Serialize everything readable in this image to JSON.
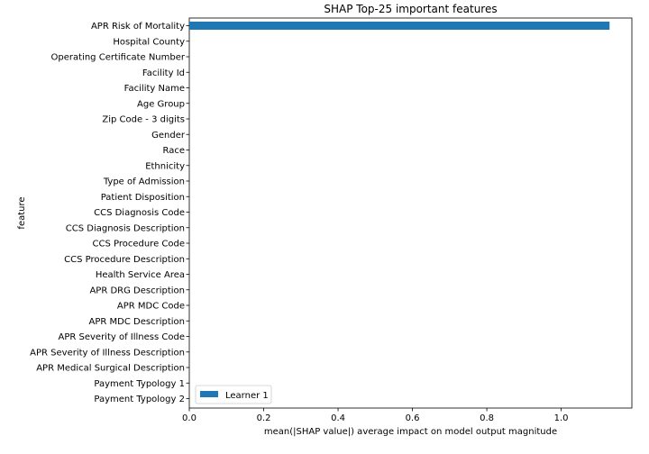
{
  "chart_data": {
    "type": "bar",
    "orientation": "horizontal",
    "title": "SHAP Top-25 important features",
    "xlabel": "mean(|SHAP value|) average impact on model output magnitude",
    "ylabel": "feature",
    "xlim": [
      0,
      1.19
    ],
    "xticks": [
      0,
      0.2,
      0.4,
      0.6,
      0.8,
      1.0
    ],
    "xtick_labels": [
      "0.0",
      "0.2",
      "0.4",
      "0.6",
      "0.8",
      "1.0"
    ],
    "grid": false,
    "legend_position": "lower-left",
    "categories": [
      "APR Risk of Mortality",
      "Hospital County",
      "Operating Certificate Number",
      "Facility Id",
      "Facility Name",
      "Age Group",
      "Zip Code - 3 digits",
      "Gender",
      "Race",
      "Ethnicity",
      "Type of Admission",
      "Patient Disposition",
      "CCS Diagnosis Code",
      "CCS Diagnosis Description",
      "CCS Procedure Code",
      "CCS Procedure Description",
      "Health Service Area",
      "APR DRG Description",
      "APR MDC Code",
      "APR MDC Description",
      "APR Severity of Illness Code",
      "APR Severity of Illness Description",
      "APR Medical Surgical Description",
      "Payment Typology 1",
      "Payment Typology 2"
    ],
    "series": [
      {
        "name": "Learner 1",
        "color": "#1f77b4",
        "values": [
          1.13,
          0,
          0,
          0,
          0,
          0,
          0,
          0,
          0,
          0,
          0,
          0,
          0,
          0,
          0,
          0,
          0,
          0,
          0,
          0,
          0,
          0,
          0,
          0,
          0
        ]
      }
    ]
  }
}
